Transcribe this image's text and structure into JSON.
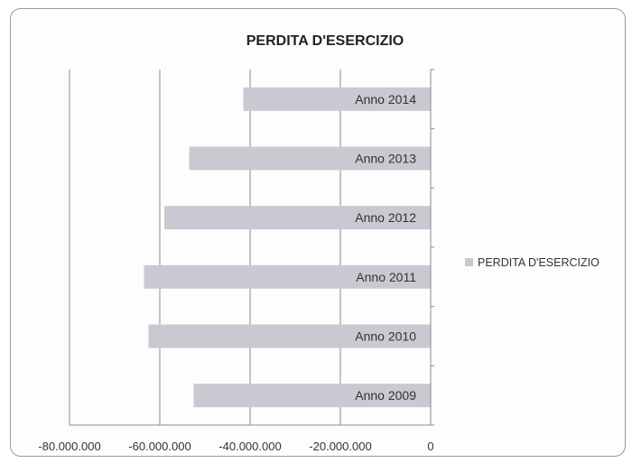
{
  "chart_data": {
    "type": "bar",
    "orientation": "horizontal",
    "title": "PERDITA D'ESERCIZIO",
    "categories": [
      "Anno 2009",
      "Anno 2010",
      "Anno 2011",
      "Anno 2012",
      "Anno 2013",
      "Anno 2014"
    ],
    "series": [
      {
        "name": "PERDITA D'ESERCIZIO",
        "values": [
          -52500000,
          -62500000,
          -63500000,
          -59000000,
          -53500000,
          -41500000
        ],
        "color": "#c9c9d1"
      }
    ],
    "xlim": [
      -80000000,
      0
    ],
    "x_ticks": [
      -80000000,
      -60000000,
      -40000000,
      -20000000,
      0
    ],
    "x_tick_labels": [
      "-80.000.000",
      "-60.000.000",
      "-40.000.000",
      "-20.000.000",
      "0"
    ],
    "grid": "vertical",
    "legend": "right"
  }
}
